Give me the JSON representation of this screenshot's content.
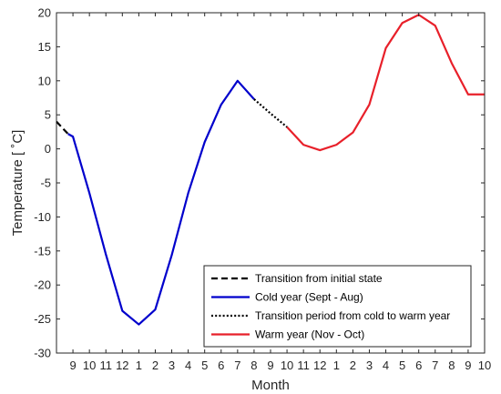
{
  "chart_data": {
    "type": "line",
    "xlabel": "Month",
    "ylabel": "Temperature [ ˚C]",
    "ylim": [
      -30,
      20
    ],
    "yticks": [
      -30,
      -25,
      -20,
      -15,
      -10,
      -5,
      0,
      5,
      10,
      15,
      20
    ],
    "xlim": [
      0,
      26
    ],
    "x_tick_positions": [
      1,
      2,
      3,
      4,
      5,
      6,
      7,
      8,
      9,
      10,
      11,
      12,
      13,
      14,
      15,
      16,
      17,
      18,
      19,
      20,
      21,
      22,
      23,
      24,
      25,
      26
    ],
    "x_tick_labels": [
      "9",
      "10",
      "11",
      "12",
      "1",
      "2",
      "3",
      "4",
      "5",
      "6",
      "7",
      "8",
      "9",
      "10",
      "11",
      "12",
      "1",
      "2",
      "3",
      "4",
      "5",
      "6",
      "7",
      "8",
      "9",
      "10"
    ],
    "grid": false,
    "legend_position": "bottom-right",
    "series": [
      {
        "name": "Transition from initial state",
        "color": "#000000",
        "style": "dashed",
        "x": [
          0,
          0.7
        ],
        "y": [
          4.0,
          2.2
        ]
      },
      {
        "name": "Cold year (Sept - Aug)",
        "color": "#0000cc",
        "style": "solid",
        "x": [
          0.7,
          1,
          2,
          3,
          4,
          5,
          6,
          7,
          8,
          9,
          10,
          11,
          12
        ],
        "y": [
          2.2,
          1.8,
          -6.5,
          -15.5,
          -23.8,
          -25.8,
          -23.6,
          -15.6,
          -6.5,
          1.0,
          6.5,
          10.0,
          7.3
        ]
      },
      {
        "name": "Transition period from cold to warm year",
        "color": "#000000",
        "style": "dotted",
        "x": [
          12,
          13,
          14
        ],
        "y": [
          7.3,
          5.2,
          3.2
        ]
      },
      {
        "name": "Warm year (Nov - Oct)",
        "color": "#e8202a",
        "style": "solid",
        "x": [
          14,
          15,
          16,
          17,
          18,
          19,
          20,
          21,
          22,
          23,
          24,
          25,
          26
        ],
        "y": [
          3.2,
          0.6,
          -0.2,
          0.6,
          2.4,
          6.5,
          14.8,
          18.5,
          19.7,
          18.1,
          12.6,
          8.0,
          8.0
        ]
      }
    ]
  }
}
